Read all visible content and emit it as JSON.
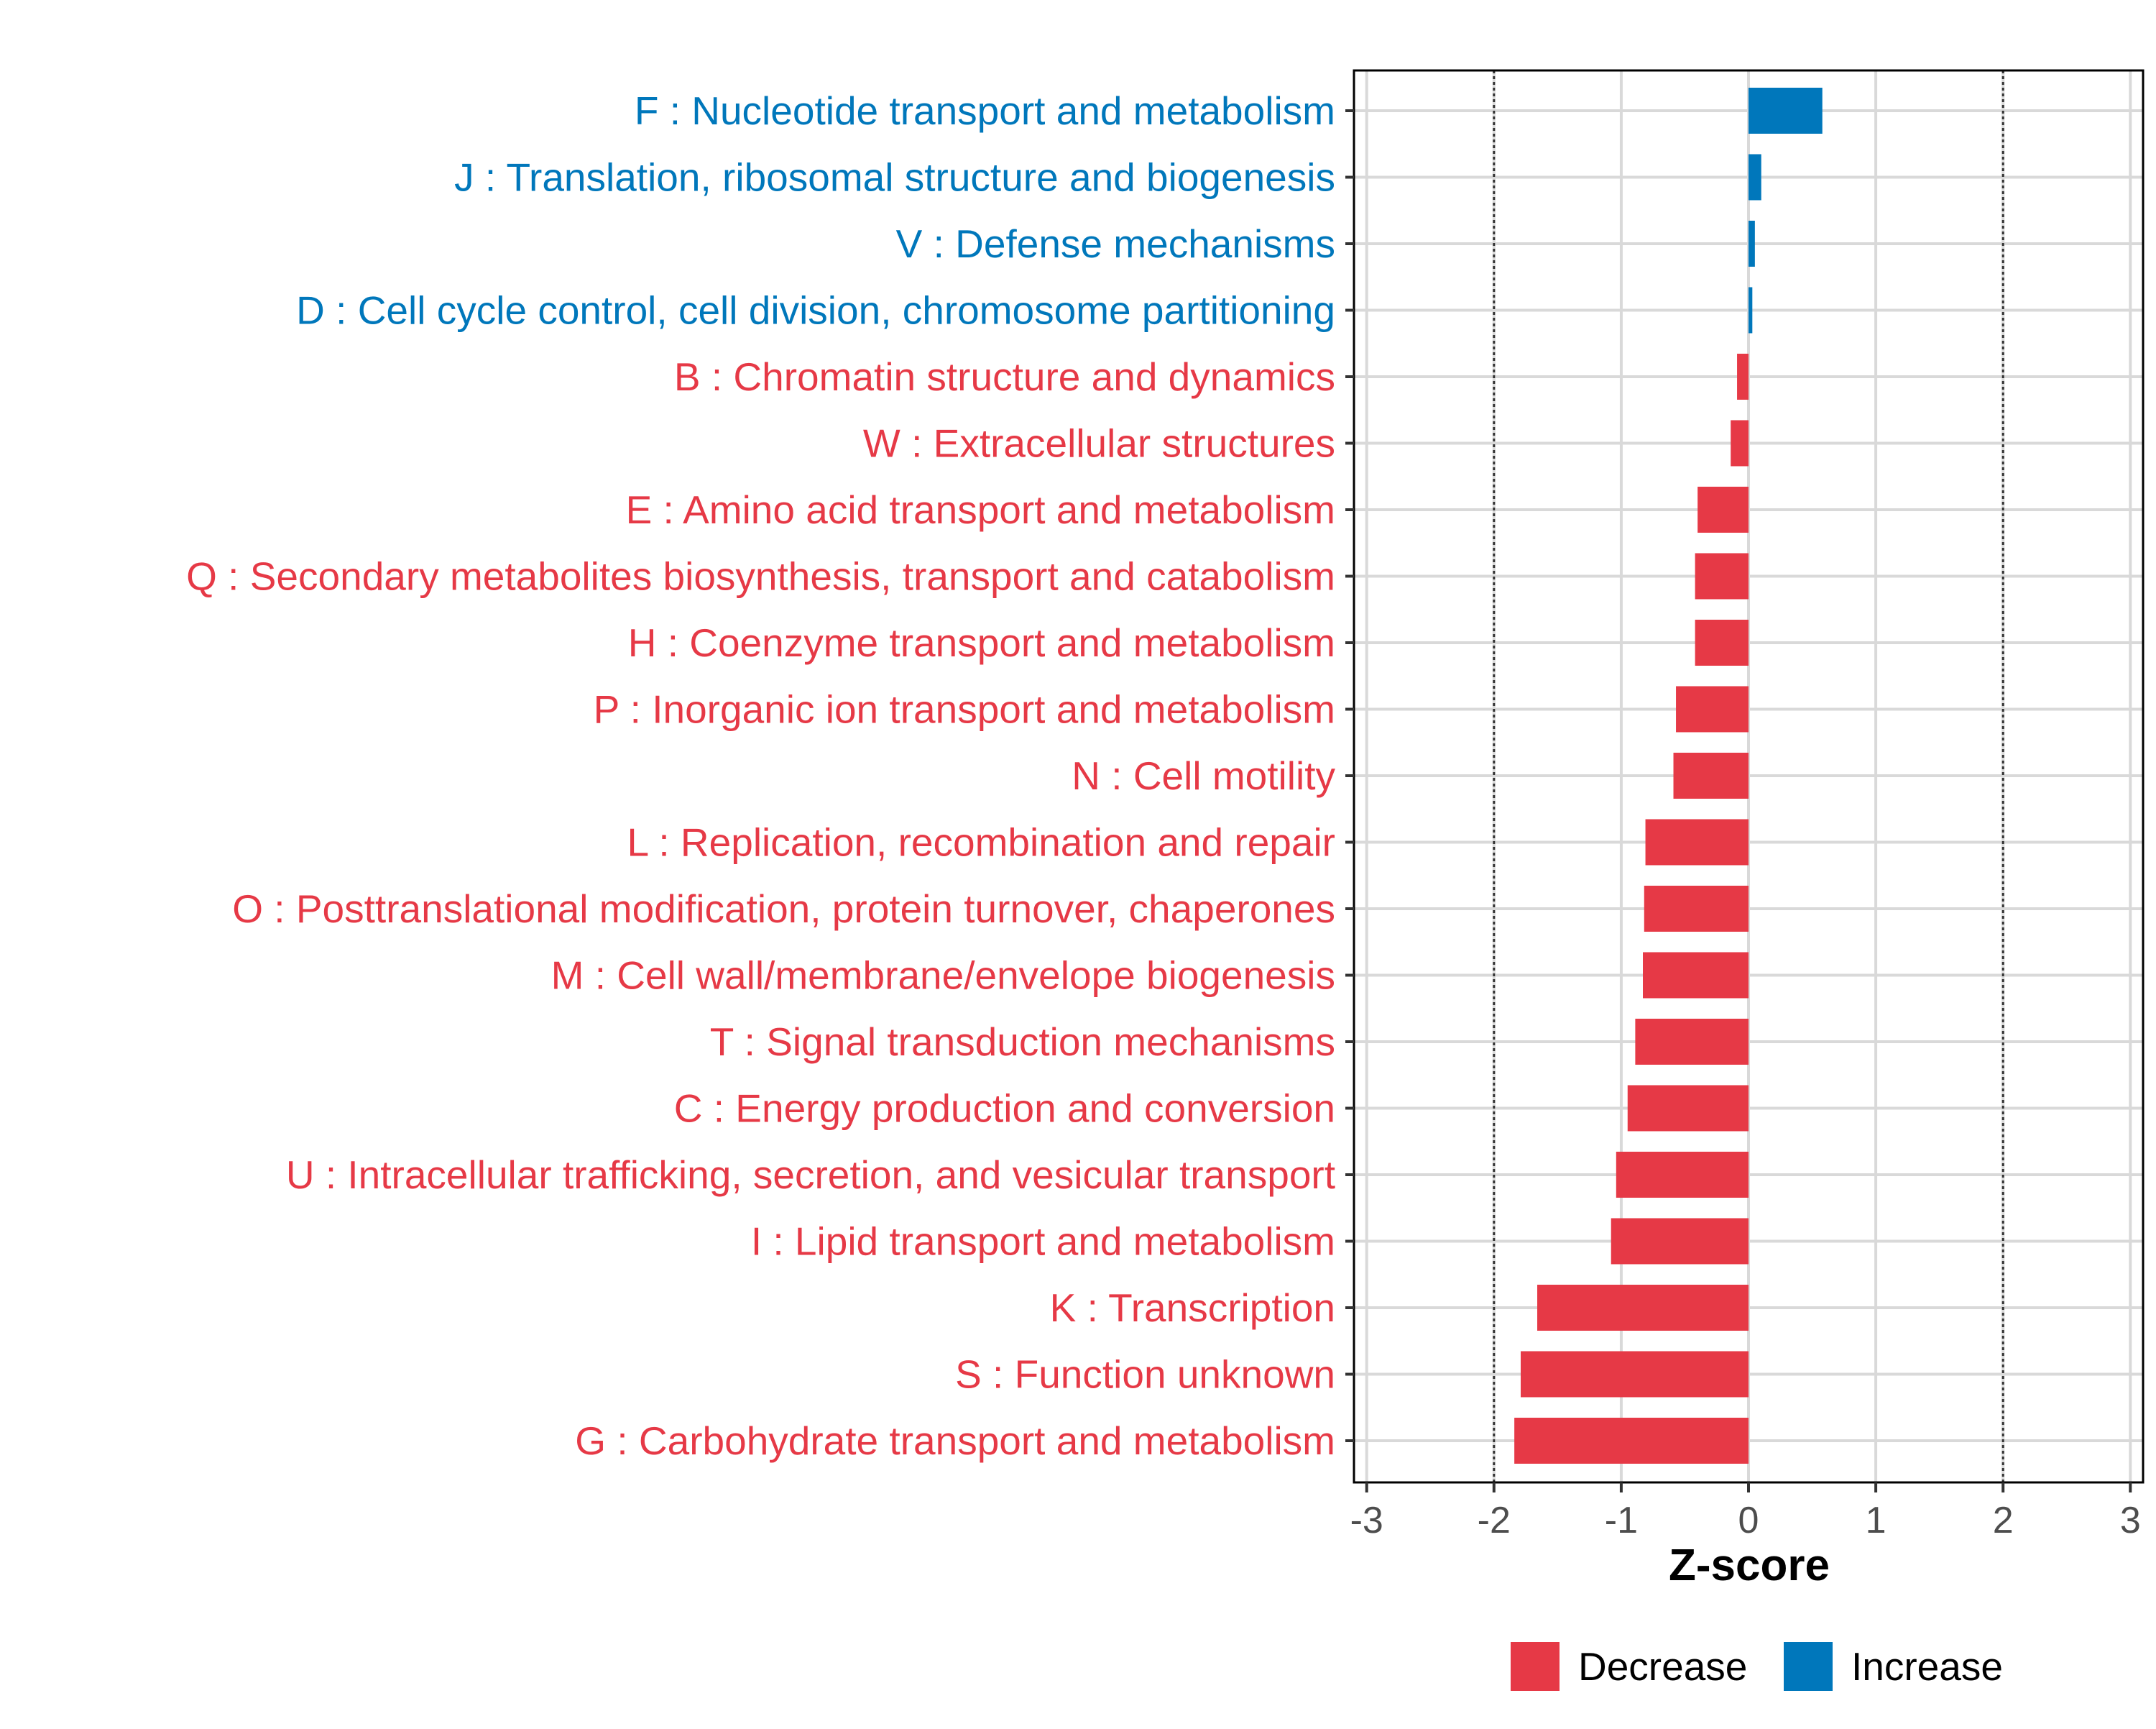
{
  "colors": {
    "increase": "#0077BB",
    "decrease": "#E63946",
    "grid": "#D9D9D9",
    "axis": "#000000",
    "tick_text": "#4D4D4D",
    "ref_line": "#333333"
  },
  "chart_data": {
    "type": "bar",
    "orientation": "horizontal",
    "title": "",
    "xlabel": "Z-score",
    "ylabel": "",
    "xlim": [
      -3.1,
      3.1
    ],
    "xticks": [
      -3,
      -2,
      -1,
      0,
      1,
      2,
      3
    ],
    "xtick_labels": [
      "-3",
      "-2",
      "-1",
      "0",
      "1",
      "2",
      "3"
    ],
    "reference_lines": [
      -2,
      2
    ],
    "grid": true,
    "legend_position": "bottom",
    "legend": [
      {
        "label": "Decrease",
        "color_key": "decrease"
      },
      {
        "label": "Increase",
        "color_key": "increase"
      }
    ],
    "categories": [
      "F : Nucleotide transport and metabolism",
      "J : Translation, ribosomal structure and biogenesis",
      "V : Defense mechanisms",
      "D : Cell cycle control, cell division, chromosome partitioning",
      "B : Chromatin structure and dynamics",
      "W : Extracellular structures",
      "E : Amino acid transport and metabolism",
      "Q : Secondary metabolites biosynthesis, transport and catabolism",
      "H : Coenzyme transport and metabolism",
      "P : Inorganic ion transport and metabolism",
      "N : Cell motility",
      "L : Replication, recombination and repair",
      "O : Posttranslational modification, protein turnover, chaperones",
      "M : Cell wall/membrane/envelope biogenesis",
      "T : Signal transduction mechanisms",
      "C : Energy production and conversion",
      "U : Intracellular trafficking, secretion, and vesicular transport",
      "I : Lipid transport and metabolism",
      "K : Transcription",
      "S : Function unknown",
      "G : Carbohydrate transport and metabolism"
    ],
    "values": [
      0.58,
      0.1,
      0.05,
      0.03,
      -0.09,
      -0.14,
      -0.4,
      -0.42,
      -0.42,
      -0.57,
      -0.59,
      -0.81,
      -0.82,
      -0.83,
      -0.89,
      -0.95,
      -1.04,
      -1.08,
      -1.66,
      -1.79,
      -1.84
    ],
    "direction": [
      "Increase",
      "Increase",
      "Increase",
      "Increase",
      "Decrease",
      "Decrease",
      "Decrease",
      "Decrease",
      "Decrease",
      "Decrease",
      "Decrease",
      "Decrease",
      "Decrease",
      "Decrease",
      "Decrease",
      "Decrease",
      "Decrease",
      "Decrease",
      "Decrease",
      "Decrease",
      "Decrease"
    ]
  }
}
